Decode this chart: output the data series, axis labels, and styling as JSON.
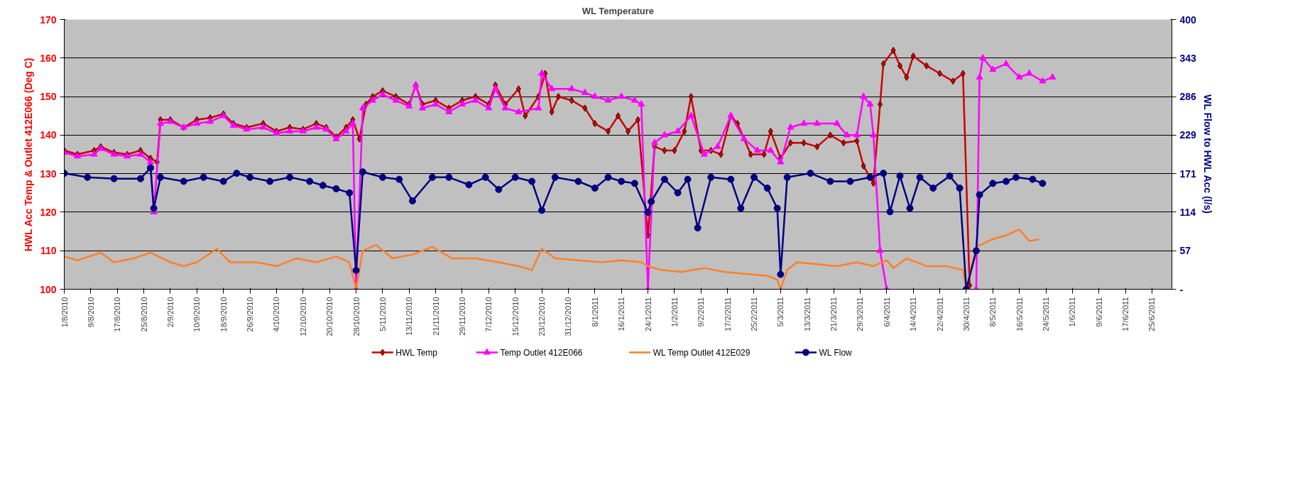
{
  "chart_data": {
    "type": "line",
    "title": "WL Temperature",
    "ylabel": "HWL Acc Temp & Outlet 412E066 (Deg C)",
    "y2label": "WL Flow to HWL Acc (l/s)",
    "xlim": [
      "2010-08-01",
      "2011-07-01"
    ],
    "xticks": [
      {
        "value": "2010-08-01",
        "label": "1/8/2010"
      },
      {
        "value": "2010-08-09",
        "label": "9/8/2010"
      },
      {
        "value": "2010-08-17",
        "label": "17/8/2010"
      },
      {
        "value": "2010-08-25",
        "label": "25/8/2010"
      },
      {
        "value": "2010-09-02",
        "label": "2/9/2010"
      },
      {
        "value": "2010-09-10",
        "label": "10/9/2010"
      },
      {
        "value": "2010-09-18",
        "label": "18/9/2010"
      },
      {
        "value": "2010-09-26",
        "label": "26/9/2010"
      },
      {
        "value": "2010-10-04",
        "label": "4/10/2010"
      },
      {
        "value": "2010-10-12",
        "label": "12/10/2010"
      },
      {
        "value": "2010-10-20",
        "label": "20/10/2010"
      },
      {
        "value": "2010-10-28",
        "label": "28/10/2010"
      },
      {
        "value": "2010-11-05",
        "label": "5/11/2010"
      },
      {
        "value": "2010-11-13",
        "label": "13/11/2010"
      },
      {
        "value": "2010-11-21",
        "label": "21/11/2010"
      },
      {
        "value": "2010-11-29",
        "label": "29/11/2010"
      },
      {
        "value": "2010-12-07",
        "label": "7/12/2010"
      },
      {
        "value": "2010-12-15",
        "label": "15/12/2010"
      },
      {
        "value": "2010-12-23",
        "label": "23/12/2010"
      },
      {
        "value": "2010-12-31",
        "label": "31/12/2010"
      },
      {
        "value": "2011-01-08",
        "label": "8/1/2011"
      },
      {
        "value": "2011-01-16",
        "label": "16/1/2011"
      },
      {
        "value": "2011-01-24",
        "label": "24/1/2011"
      },
      {
        "value": "2011-02-01",
        "label": "1/2/2011"
      },
      {
        "value": "2011-02-09",
        "label": "9/2/2011"
      },
      {
        "value": "2011-02-17",
        "label": "17/2/2011"
      },
      {
        "value": "2011-02-25",
        "label": "25/2/2011"
      },
      {
        "value": "2011-03-05",
        "label": "5/3/2011"
      },
      {
        "value": "2011-03-13",
        "label": "13/3/2011"
      },
      {
        "value": "2011-03-21",
        "label": "21/3/2011"
      },
      {
        "value": "2011-03-29",
        "label": "29/3/2011"
      },
      {
        "value": "2011-04-06",
        "label": "6/4/2011"
      },
      {
        "value": "2011-04-14",
        "label": "14/4/2011"
      },
      {
        "value": "2011-04-22",
        "label": "22/4/2011"
      },
      {
        "value": "2011-04-30",
        "label": "30/4/2011"
      },
      {
        "value": "2011-05-08",
        "label": "8/5/2011"
      },
      {
        "value": "2011-05-16",
        "label": "16/5/2011"
      },
      {
        "value": "2011-05-24",
        "label": "24/5/2011"
      },
      {
        "value": "2011-06-01",
        "label": "1/6/2011"
      },
      {
        "value": "2011-06-09",
        "label": "9/6/2011"
      },
      {
        "value": "2011-06-17",
        "label": "17/6/2011"
      },
      {
        "value": "2011-06-25",
        "label": "25/6/2011"
      }
    ],
    "ylim": [
      100,
      170
    ],
    "yticks": [
      100,
      110,
      120,
      130,
      140,
      150,
      160,
      170
    ],
    "y2lim": [
      0,
      400
    ],
    "y2ticks": [
      {
        "value": 0,
        "label": "-"
      },
      {
        "value": 57.14,
        "label": "57"
      },
      {
        "value": 114.29,
        "label": "114"
      },
      {
        "value": 171.43,
        "label": "171"
      },
      {
        "value": 228.57,
        "label": "229"
      },
      {
        "value": 285.71,
        "label": "286"
      },
      {
        "value": 342.86,
        "label": "343"
      },
      {
        "value": 400,
        "label": "400"
      }
    ],
    "grid": "y",
    "legend": "bottom",
    "series": [
      {
        "name": "HWL Temp",
        "color": "#cc0000",
        "marker": "diamond",
        "x": [
          "2010-08-01",
          "2010-08-05",
          "2010-08-10",
          "2010-08-12",
          "2010-08-16",
          "2010-08-20",
          "2010-08-24",
          "2010-08-27",
          "2010-08-29",
          "2010-08-30",
          "2010-09-02",
          "2010-09-06",
          "2010-09-10",
          "2010-09-14",
          "2010-09-18",
          "2010-09-21",
          "2010-09-25",
          "2010-09-30",
          "2010-10-04",
          "2010-10-08",
          "2010-10-12",
          "2010-10-16",
          "2010-10-19",
          "2010-10-22",
          "2010-10-25",
          "2010-10-27",
          "2010-10-29",
          "2010-10-31",
          "2010-11-02",
          "2010-11-05",
          "2010-11-09",
          "2010-11-13",
          "2010-11-15",
          "2010-11-17",
          "2010-11-21",
          "2010-11-25",
          "2010-11-29",
          "2010-12-03",
          "2010-12-07",
          "2010-12-09",
          "2010-12-12",
          "2010-12-16",
          "2010-12-18",
          "2010-12-22",
          "2010-12-24",
          "2010-12-26",
          "2010-12-28",
          "2011-01-01",
          "2011-01-05",
          "2011-01-08",
          "2011-01-12",
          "2011-01-15",
          "2011-01-18",
          "2011-01-21",
          "2011-01-24",
          "2011-01-26",
          "2011-01-29",
          "2011-02-01",
          "2011-02-04",
          "2011-02-06",
          "2011-02-09",
          "2011-02-12",
          "2011-02-15",
          "2011-02-18",
          "2011-02-20",
          "2011-02-24",
          "2011-02-28",
          "2011-03-02",
          "2011-03-05",
          "2011-03-08",
          "2011-03-12",
          "2011-03-16",
          "2011-03-20",
          "2011-03-24",
          "2011-03-28",
          "2011-03-30",
          "2011-04-02",
          "2011-04-04",
          "2011-04-05",
          "2011-04-08",
          "2011-04-10",
          "2011-04-12",
          "2011-04-14",
          "2011-04-18",
          "2011-04-22",
          "2011-04-26",
          "2011-04-29",
          "2011-05-01"
        ],
        "values": [
          136,
          135,
          136,
          137,
          135.5,
          135,
          136,
          134,
          133,
          144,
          144,
          142,
          144,
          144.5,
          145.5,
          143,
          142,
          143,
          141,
          142,
          141.5,
          143,
          142,
          139.5,
          142,
          144,
          139,
          148,
          150,
          151.5,
          150,
          148,
          153,
          148,
          149,
          147,
          149,
          150,
          148,
          153,
          148,
          152,
          145,
          150,
          156,
          146,
          150,
          149,
          147,
          143,
          141,
          145,
          141,
          144,
          114,
          137,
          136,
          136,
          141,
          150,
          136,
          136,
          135,
          145,
          143,
          135,
          135,
          141,
          134,
          138,
          138,
          137,
          140,
          138,
          138.5,
          132,
          127.5,
          148,
          158.5,
          162,
          158,
          155,
          160.5,
          158,
          156,
          154,
          156,
          101
        ]
      },
      {
        "name": "Temp Outlet 412E066",
        "color": "#ff00ff",
        "marker": "triangle",
        "x": [
          "2010-08-01",
          "2010-08-05",
          "2010-08-10",
          "2010-08-12",
          "2010-08-16",
          "2010-08-20",
          "2010-08-24",
          "2010-08-27",
          "2010-08-28",
          "2010-08-30",
          "2010-09-02",
          "2010-09-06",
          "2010-09-10",
          "2010-09-14",
          "2010-09-18",
          "2010-09-21",
          "2010-09-25",
          "2010-09-30",
          "2010-10-04",
          "2010-10-08",
          "2010-10-12",
          "2010-10-16",
          "2010-10-19",
          "2010-10-22",
          "2010-10-25",
          "2010-10-27",
          "2010-10-28",
          "2010-10-30",
          "2010-11-02",
          "2010-11-05",
          "2010-11-09",
          "2010-11-13",
          "2010-11-15",
          "2010-11-17",
          "2010-11-21",
          "2010-11-25",
          "2010-11-29",
          "2010-12-03",
          "2010-12-07",
          "2010-12-09",
          "2010-12-12",
          "2010-12-16",
          "2010-12-22",
          "2010-12-23",
          "2010-12-26",
          "2011-01-01",
          "2011-01-05",
          "2011-01-08",
          "2011-01-12",
          "2011-01-16",
          "2011-01-20",
          "2011-01-22",
          "2011-01-24",
          "2011-01-26",
          "2011-01-29",
          "2011-02-02",
          "2011-02-06",
          "2011-02-10",
          "2011-02-14",
          "2011-02-18",
          "2011-02-22",
          "2011-02-26",
          "2011-03-02",
          "2011-03-05",
          "2011-03-08",
          "2011-03-12",
          "2011-03-16",
          "2011-03-22",
          "2011-03-25",
          "2011-03-28",
          "2011-03-30",
          "2011-04-01",
          "2011-04-02",
          "2011-04-04",
          "2011-04-06",
          null,
          "2011-05-03",
          "2011-05-04",
          "2011-05-05",
          "2011-05-08",
          "2011-05-12",
          "2011-05-16",
          "2011-05-19",
          "2011-05-23",
          "2011-05-26"
        ],
        "values": [
          135.5,
          134.5,
          135,
          136.5,
          135,
          134.5,
          135,
          133,
          120,
          143,
          143.5,
          142,
          143,
          143.5,
          145,
          142.5,
          141.5,
          142,
          140.5,
          141,
          141,
          142,
          141.5,
          139,
          141,
          143,
          100,
          147,
          149,
          150.5,
          149,
          147.5,
          153,
          147,
          148,
          146,
          148,
          149,
          147,
          152,
          147,
          146,
          147,
          156,
          152,
          152,
          151,
          150,
          149,
          150,
          149,
          148,
          100,
          138,
          140,
          141,
          145,
          135,
          137,
          145,
          139,
          136,
          136,
          133,
          142,
          143,
          143,
          143,
          140,
          140,
          150,
          148,
          140,
          110,
          100,
          null,
          100,
          155,
          160,
          157,
          158.5,
          155,
          156,
          154,
          155
        ]
      },
      {
        "name": "WL Temp Outlet 412E029",
        "color": "#ff7f27",
        "marker": "none",
        "x": [
          "2010-08-01",
          "2010-08-05",
          "2010-08-12",
          "2010-08-16",
          "2010-08-22",
          "2010-08-27",
          "2010-09-02",
          "2010-09-06",
          "2010-09-10",
          "2010-09-16",
          "2010-09-20",
          "2010-09-28",
          "2010-10-04",
          "2010-10-10",
          "2010-10-16",
          "2010-10-22",
          "2010-10-26",
          "2010-10-28",
          "2010-10-30",
          "2010-11-03",
          "2010-11-08",
          "2010-11-14",
          "2010-11-20",
          "2010-11-26",
          "2010-12-03",
          "2010-12-10",
          "2010-12-16",
          "2010-12-20",
          "2010-12-23",
          "2010-12-27",
          "2011-01-03",
          "2011-01-10",
          "2011-01-16",
          "2011-01-22",
          "2011-01-24",
          "2011-01-28",
          "2011-02-03",
          "2011-02-10",
          "2011-02-16",
          "2011-02-22",
          "2011-03-01",
          "2011-03-04",
          "2011-03-05",
          "2011-03-07",
          "2011-03-10",
          "2011-03-16",
          "2011-03-22",
          "2011-03-28",
          "2011-04-02",
          "2011-04-06",
          "2011-04-08",
          "2011-04-12",
          "2011-04-18",
          "2011-04-24",
          "2011-04-29",
          "2011-04-30",
          "2011-05-03",
          "2011-05-08",
          "2011-05-12",
          "2011-05-16",
          "2011-05-19",
          "2011-05-22"
        ],
        "values": [
          108.5,
          107.5,
          109.5,
          107,
          108,
          109.5,
          107,
          106,
          107,
          110.5,
          107,
          107,
          106,
          108,
          107,
          108.5,
          107,
          100,
          110,
          111.5,
          108,
          109,
          111,
          108,
          108,
          107,
          106,
          105,
          110.5,
          108,
          107.5,
          107,
          107.5,
          107,
          106,
          105,
          104.5,
          105.5,
          104.5,
          104,
          103.5,
          102.5,
          100,
          105,
          107,
          106.5,
          106,
          107,
          106,
          107.5,
          105.5,
          108,
          106,
          106,
          105,
          100,
          111,
          113,
          114,
          115.5,
          112.5,
          113
        ]
      },
      {
        "name": "WL Flow",
        "color": "#000080",
        "marker": "circle",
        "axis": "y2",
        "x": [
          "2010-08-01",
          "2010-08-08",
          "2010-08-16",
          "2010-08-24",
          "2010-08-27",
          "2010-08-28",
          "2010-08-30",
          "2010-09-06",
          "2010-09-12",
          "2010-09-18",
          "2010-09-22",
          "2010-09-26",
          "2010-10-02",
          "2010-10-08",
          "2010-10-14",
          "2010-10-18",
          "2010-10-22",
          "2010-10-26",
          "2010-10-28",
          "2010-10-30",
          "2010-11-05",
          "2010-11-10",
          "2010-11-14",
          "2010-11-20",
          "2010-11-25",
          "2010-12-01",
          "2010-12-06",
          "2010-12-10",
          "2010-12-15",
          "2010-12-20",
          "2010-12-23",
          "2010-12-27",
          "2011-01-03",
          "2011-01-08",
          "2011-01-12",
          "2011-01-16",
          "2011-01-20",
          "2011-01-24",
          "2011-01-25",
          "2011-01-29",
          "2011-02-02",
          "2011-02-05",
          "2011-02-08",
          "2011-02-12",
          "2011-02-18",
          "2011-02-21",
          "2011-02-25",
          "2011-03-01",
          "2011-03-04",
          "2011-03-05",
          "2011-03-07",
          "2011-03-14",
          "2011-03-20",
          "2011-03-26",
          "2011-04-01",
          "2011-04-05",
          "2011-04-07",
          "2011-04-10",
          "2011-04-13",
          "2011-04-16",
          "2011-04-20",
          "2011-04-25",
          "2011-04-28",
          "2011-04-30",
          "2011-05-03",
          "2011-05-04",
          "2011-05-08",
          "2011-05-12",
          "2011-05-15",
          "2011-05-20",
          "2011-05-23"
        ],
        "values": [
          172,
          166,
          164,
          164,
          180,
          120,
          166,
          160,
          166,
          160,
          172,
          166,
          160,
          166,
          160,
          154,
          149,
          143,
          28,
          174,
          166,
          163,
          131,
          166,
          166,
          155,
          166,
          148,
          166,
          160,
          117,
          166,
          160,
          150,
          166,
          160,
          157,
          114,
          130,
          163,
          143,
          163,
          91,
          166,
          163,
          120,
          166,
          150,
          120,
          22,
          166,
          172,
          160,
          160,
          166,
          172,
          115,
          168,
          120,
          166,
          150,
          168,
          150,
          0,
          57,
          140,
          157,
          160,
          166,
          163,
          157
        ]
      }
    ]
  }
}
